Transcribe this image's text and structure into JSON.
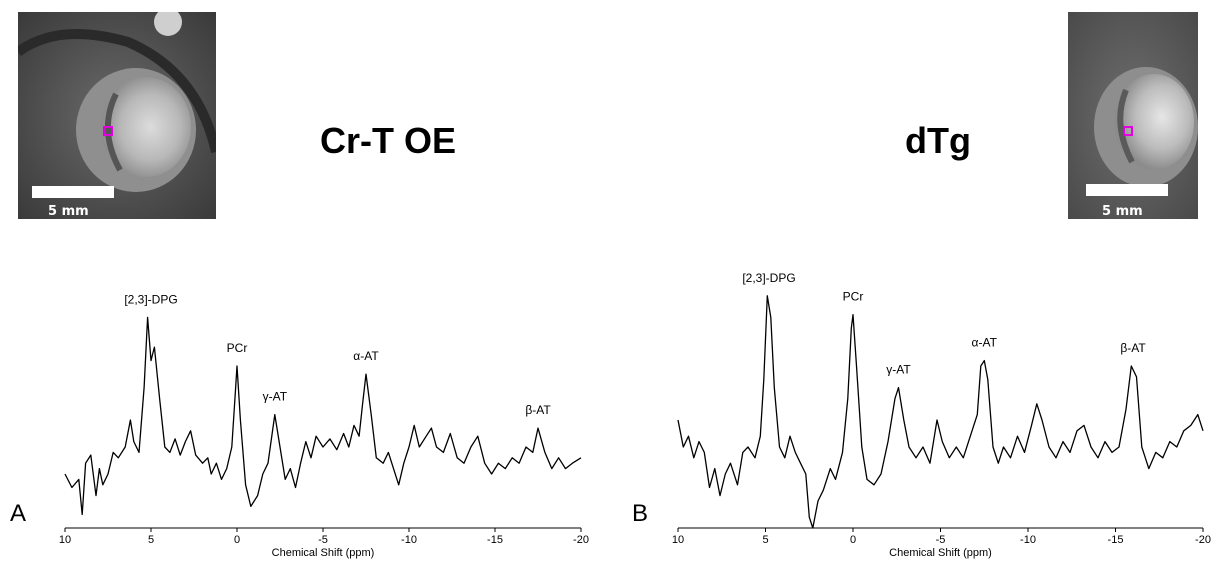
{
  "panels": [
    {
      "letter": "A",
      "title": "Cr-T OE",
      "image": {
        "scale_label": "5 mm",
        "marker_color": "#e000e0"
      }
    },
    {
      "letter": "B",
      "title": "dTg",
      "image": {
        "scale_label": "5 mm",
        "marker_color": "#e000e0"
      }
    }
  ],
  "chart_data": [
    {
      "type": "line",
      "panel": "A",
      "xlabel": "Chemical Shift (ppm)",
      "xlim": [
        10,
        -20
      ],
      "x_ticks": [
        10,
        5,
        0,
        -5,
        -10,
        -15,
        -20
      ],
      "x_tick_labels": [
        "10",
        "5",
        "0",
        "-5",
        "-10",
        "-15",
        "-20"
      ],
      "x_axis_reversed": true,
      "y_axis": "none",
      "peaks": [
        {
          "label": "[2,3]-DPG",
          "ppm": 5.0,
          "height": 0.78
        },
        {
          "label": "PCr",
          "ppm": 0.0,
          "height": 0.6
        },
        {
          "label": "γ-AT",
          "ppm": -2.2,
          "height": 0.42
        },
        {
          "label": "α-AT",
          "ppm": -7.5,
          "height": 0.57
        },
        {
          "label": "β-AT",
          "ppm": -17.5,
          "height": 0.37
        }
      ],
      "trace": [
        [
          10,
          0.2
        ],
        [
          9.6,
          0.15
        ],
        [
          9.2,
          0.18
        ],
        [
          9.0,
          0.05
        ],
        [
          8.8,
          0.24
        ],
        [
          8.5,
          0.27
        ],
        [
          8.2,
          0.12
        ],
        [
          8.0,
          0.22
        ],
        [
          7.8,
          0.16
        ],
        [
          7.5,
          0.2
        ],
        [
          7.2,
          0.28
        ],
        [
          6.9,
          0.26
        ],
        [
          6.5,
          0.3
        ],
        [
          6.2,
          0.4
        ],
        [
          6.0,
          0.32
        ],
        [
          5.7,
          0.28
        ],
        [
          5.4,
          0.52
        ],
        [
          5.2,
          0.78
        ],
        [
          5.0,
          0.62
        ],
        [
          4.8,
          0.67
        ],
        [
          4.5,
          0.48
        ],
        [
          4.2,
          0.3
        ],
        [
          3.9,
          0.28
        ],
        [
          3.6,
          0.33
        ],
        [
          3.3,
          0.27
        ],
        [
          3.0,
          0.32
        ],
        [
          2.7,
          0.36
        ],
        [
          2.4,
          0.27
        ],
        [
          2.0,
          0.24
        ],
        [
          1.7,
          0.26
        ],
        [
          1.5,
          0.2
        ],
        [
          1.2,
          0.24
        ],
        [
          0.9,
          0.18
        ],
        [
          0.6,
          0.22
        ],
        [
          0.3,
          0.3
        ],
        [
          0.1,
          0.5
        ],
        [
          0.0,
          0.6
        ],
        [
          -0.2,
          0.4
        ],
        [
          -0.5,
          0.16
        ],
        [
          -0.8,
          0.08
        ],
        [
          -1.2,
          0.12
        ],
        [
          -1.5,
          0.2
        ],
        [
          -1.8,
          0.24
        ],
        [
          -2.2,
          0.42
        ],
        [
          -2.5,
          0.3
        ],
        [
          -2.8,
          0.18
        ],
        [
          -3.1,
          0.22
        ],
        [
          -3.4,
          0.15
        ],
        [
          -3.7,
          0.24
        ],
        [
          -4.0,
          0.32
        ],
        [
          -4.3,
          0.26
        ],
        [
          -4.6,
          0.34
        ],
        [
          -5.0,
          0.3
        ],
        [
          -5.4,
          0.33
        ],
        [
          -5.8,
          0.29
        ],
        [
          -6.2,
          0.35
        ],
        [
          -6.5,
          0.3
        ],
        [
          -6.8,
          0.38
        ],
        [
          -7.1,
          0.34
        ],
        [
          -7.3,
          0.46
        ],
        [
          -7.5,
          0.57
        ],
        [
          -7.8,
          0.42
        ],
        [
          -8.1,
          0.26
        ],
        [
          -8.5,
          0.24
        ],
        [
          -8.8,
          0.28
        ],
        [
          -9.1,
          0.22
        ],
        [
          -9.4,
          0.16
        ],
        [
          -9.7,
          0.24
        ],
        [
          -10.0,
          0.3
        ],
        [
          -10.3,
          0.38
        ],
        [
          -10.6,
          0.3
        ],
        [
          -11.0,
          0.34
        ],
        [
          -11.3,
          0.37
        ],
        [
          -11.6,
          0.3
        ],
        [
          -12.0,
          0.28
        ],
        [
          -12.4,
          0.35
        ],
        [
          -12.8,
          0.26
        ],
        [
          -13.2,
          0.24
        ],
        [
          -13.6,
          0.3
        ],
        [
          -14.0,
          0.34
        ],
        [
          -14.4,
          0.24
        ],
        [
          -14.8,
          0.2
        ],
        [
          -15.2,
          0.24
        ],
        [
          -15.6,
          0.22
        ],
        [
          -16.0,
          0.26
        ],
        [
          -16.4,
          0.24
        ],
        [
          -16.8,
          0.3
        ],
        [
          -17.2,
          0.28
        ],
        [
          -17.5,
          0.37
        ],
        [
          -17.9,
          0.28
        ],
        [
          -18.3,
          0.22
        ],
        [
          -18.7,
          0.26
        ],
        [
          -19.1,
          0.22
        ],
        [
          -19.5,
          0.24
        ],
        [
          -20.0,
          0.26
        ]
      ]
    },
    {
      "type": "line",
      "panel": "B",
      "xlabel": "Chemical Shift (ppm)",
      "xlim": [
        10,
        -20
      ],
      "x_ticks": [
        10,
        5,
        0,
        -5,
        -10,
        -15,
        -20
      ],
      "x_tick_labels": [
        "10",
        "5",
        "0",
        "-5",
        "-10",
        "-15",
        "-20"
      ],
      "x_axis_reversed": true,
      "y_axis": "none",
      "peaks": [
        {
          "label": "[2,3]-DPG",
          "ppm": 4.8,
          "height": 0.86
        },
        {
          "label": "PCr",
          "ppm": 0.0,
          "height": 0.79
        },
        {
          "label": "γ-AT",
          "ppm": -2.6,
          "height": 0.52
        },
        {
          "label": "α-AT",
          "ppm": -7.5,
          "height": 0.62
        },
        {
          "label": "β-AT",
          "ppm": -16.0,
          "height": 0.6
        }
      ],
      "trace": [
        [
          10,
          0.4
        ],
        [
          9.7,
          0.3
        ],
        [
          9.4,
          0.34
        ],
        [
          9.1,
          0.26
        ],
        [
          8.8,
          0.32
        ],
        [
          8.5,
          0.28
        ],
        [
          8.2,
          0.15
        ],
        [
          7.9,
          0.22
        ],
        [
          7.6,
          0.12
        ],
        [
          7.3,
          0.2
        ],
        [
          7.0,
          0.24
        ],
        [
          6.6,
          0.16
        ],
        [
          6.3,
          0.28
        ],
        [
          6.0,
          0.3
        ],
        [
          5.6,
          0.26
        ],
        [
          5.3,
          0.34
        ],
        [
          5.1,
          0.55
        ],
        [
          4.9,
          0.86
        ],
        [
          4.7,
          0.78
        ],
        [
          4.5,
          0.52
        ],
        [
          4.2,
          0.3
        ],
        [
          3.9,
          0.26
        ],
        [
          3.6,
          0.34
        ],
        [
          3.3,
          0.28
        ],
        [
          3.0,
          0.24
        ],
        [
          2.7,
          0.2
        ],
        [
          2.5,
          0.04
        ],
        [
          2.3,
          0.0
        ],
        [
          2.0,
          0.1
        ],
        [
          1.7,
          0.14
        ],
        [
          1.3,
          0.22
        ],
        [
          1.0,
          0.18
        ],
        [
          0.6,
          0.28
        ],
        [
          0.3,
          0.48
        ],
        [
          0.1,
          0.74
        ],
        [
          0.0,
          0.79
        ],
        [
          -0.2,
          0.6
        ],
        [
          -0.5,
          0.3
        ],
        [
          -0.8,
          0.18
        ],
        [
          -1.2,
          0.16
        ],
        [
          -1.6,
          0.2
        ],
        [
          -2.0,
          0.32
        ],
        [
          -2.4,
          0.48
        ],
        [
          -2.6,
          0.52
        ],
        [
          -2.9,
          0.4
        ],
        [
          -3.2,
          0.3
        ],
        [
          -3.6,
          0.26
        ],
        [
          -4.0,
          0.3
        ],
        [
          -4.4,
          0.24
        ],
        [
          -4.8,
          0.4
        ],
        [
          -5.1,
          0.32
        ],
        [
          -5.5,
          0.26
        ],
        [
          -5.9,
          0.3
        ],
        [
          -6.3,
          0.26
        ],
        [
          -6.7,
          0.34
        ],
        [
          -7.1,
          0.42
        ],
        [
          -7.3,
          0.6
        ],
        [
          -7.5,
          0.62
        ],
        [
          -7.7,
          0.55
        ],
        [
          -8.0,
          0.3
        ],
        [
          -8.3,
          0.24
        ],
        [
          -8.6,
          0.3
        ],
        [
          -9.0,
          0.26
        ],
        [
          -9.4,
          0.34
        ],
        [
          -9.8,
          0.28
        ],
        [
          -10.2,
          0.38
        ],
        [
          -10.5,
          0.46
        ],
        [
          -10.8,
          0.4
        ],
        [
          -11.2,
          0.3
        ],
        [
          -11.6,
          0.26
        ],
        [
          -12.0,
          0.32
        ],
        [
          -12.4,
          0.28
        ],
        [
          -12.8,
          0.36
        ],
        [
          -13.2,
          0.38
        ],
        [
          -13.6,
          0.3
        ],
        [
          -14.0,
          0.26
        ],
        [
          -14.4,
          0.32
        ],
        [
          -14.8,
          0.28
        ],
        [
          -15.2,
          0.3
        ],
        [
          -15.6,
          0.44
        ],
        [
          -15.9,
          0.6
        ],
        [
          -16.2,
          0.56
        ],
        [
          -16.5,
          0.3
        ],
        [
          -16.9,
          0.22
        ],
        [
          -17.3,
          0.28
        ],
        [
          -17.7,
          0.26
        ],
        [
          -18.1,
          0.32
        ],
        [
          -18.5,
          0.3
        ],
        [
          -18.9,
          0.36
        ],
        [
          -19.3,
          0.38
        ],
        [
          -19.7,
          0.42
        ],
        [
          -20.0,
          0.36
        ]
      ]
    }
  ]
}
